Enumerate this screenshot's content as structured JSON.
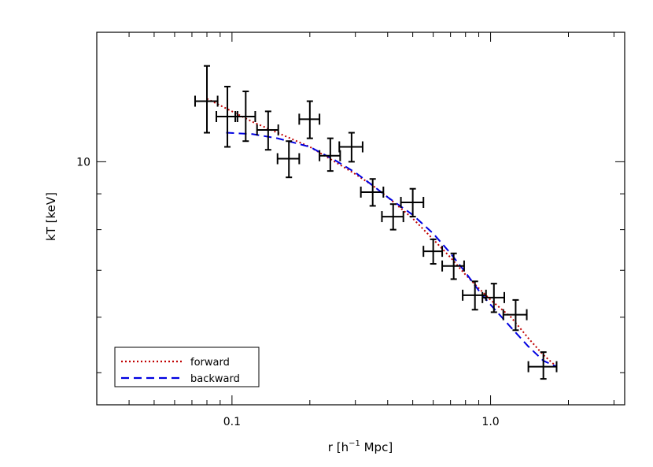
{
  "chart_data": {
    "type": "scatter",
    "xlabel": "r [h",
    "xlabel_sup": "−1",
    "xlabel_end": " Mpc]",
    "ylabel": "kT [keV]",
    "x_scale": "log",
    "y_scale": "log",
    "xlim": [
      0.03,
      3.3
    ],
    "ylim": [
      4.5,
      15.3
    ],
    "x_tick_labels": [
      {
        "value": 0.1,
        "label": "0.1"
      },
      {
        "value": 1.0,
        "label": "1.0"
      }
    ],
    "y_tick_labels": [
      {
        "value": 10,
        "label": "10"
      }
    ],
    "grid": false,
    "legend_position": "bottom-left",
    "points": [
      {
        "x": 0.08,
        "y": 12.2,
        "xerr": [
          0.008,
          0.008
        ],
        "yerr": [
          1.2,
          1.5
        ]
      },
      {
        "x": 0.096,
        "y": 11.6,
        "xerr": [
          0.009,
          0.009
        ],
        "yerr": [
          1.1,
          1.2
        ]
      },
      {
        "x": 0.113,
        "y": 11.6,
        "xerr": [
          0.01,
          0.01
        ],
        "yerr": [
          0.9,
          1.0
        ]
      },
      {
        "x": 0.138,
        "y": 11.1,
        "xerr": [
          0.013,
          0.013
        ],
        "yerr": [
          0.7,
          0.7
        ]
      },
      {
        "x": 0.166,
        "y": 10.1,
        "xerr": [
          0.016,
          0.016
        ],
        "yerr": [
          0.6,
          0.6
        ]
      },
      {
        "x": 0.2,
        "y": 11.5,
        "xerr": [
          0.018,
          0.018
        ],
        "yerr": [
          0.7,
          0.7
        ]
      },
      {
        "x": 0.24,
        "y": 10.2,
        "xerr": [
          0.022,
          0.022
        ],
        "yerr": [
          0.5,
          0.6
        ]
      },
      {
        "x": 0.29,
        "y": 10.5,
        "xerr": [
          0.03,
          0.03
        ],
        "yerr": [
          0.5,
          0.5
        ]
      },
      {
        "x": 0.35,
        "y": 9.05,
        "xerr": [
          0.035,
          0.035
        ],
        "yerr": [
          0.4,
          0.4
        ]
      },
      {
        "x": 0.42,
        "y": 8.35,
        "xerr": [
          0.04,
          0.04
        ],
        "yerr": [
          0.35,
          0.35
        ]
      },
      {
        "x": 0.5,
        "y": 8.75,
        "xerr": [
          0.05,
          0.05
        ],
        "yerr": [
          0.4,
          0.4
        ]
      },
      {
        "x": 0.6,
        "y": 7.45,
        "xerr": [
          0.05,
          0.05
        ],
        "yerr": [
          0.3,
          0.3
        ]
      },
      {
        "x": 0.72,
        "y": 7.1,
        "xerr": [
          0.07,
          0.07
        ],
        "yerr": [
          0.3,
          0.3
        ]
      },
      {
        "x": 0.87,
        "y": 6.45,
        "xerr": [
          0.09,
          0.09
        ],
        "yerr": [
          0.3,
          0.3
        ]
      },
      {
        "x": 1.03,
        "y": 6.4,
        "xerr": [
          0.1,
          0.1
        ],
        "yerr": [
          0.3,
          0.3
        ]
      },
      {
        "x": 1.25,
        "y": 6.05,
        "xerr": [
          0.13,
          0.13
        ],
        "yerr": [
          0.3,
          0.3
        ]
      },
      {
        "x": 1.6,
        "y": 5.1,
        "xerr": [
          0.2,
          0.2
        ],
        "yerr": [
          0.2,
          0.25
        ]
      }
    ],
    "series": [
      {
        "name": "forward",
        "color": "#c00000",
        "dash": "dotted",
        "x": [
          0.08,
          0.1,
          0.12,
          0.15,
          0.2,
          0.25,
          0.3,
          0.35,
          0.4,
          0.5,
          0.6,
          0.7,
          0.8,
          0.9,
          1.0,
          1.2,
          1.4,
          1.6,
          1.8
        ],
        "y": [
          12.3,
          11.8,
          11.4,
          11.0,
          10.5,
          10.0,
          9.6,
          9.25,
          8.9,
          8.3,
          7.75,
          7.3,
          6.9,
          6.6,
          6.35,
          6.0,
          5.6,
          5.3,
          5.1
        ]
      },
      {
        "name": "backward",
        "color": "#0000e0",
        "dash": "dashed",
        "x": [
          0.095,
          0.12,
          0.15,
          0.2,
          0.25,
          0.3,
          0.35,
          0.4,
          0.5,
          0.6,
          0.7,
          0.8,
          0.9,
          1.0,
          1.2,
          1.4,
          1.6,
          1.8
        ],
        "y": [
          11.0,
          10.95,
          10.8,
          10.5,
          10.05,
          9.65,
          9.25,
          8.9,
          8.4,
          7.9,
          7.4,
          6.95,
          6.55,
          6.25,
          5.8,
          5.45,
          5.2,
          5.1
        ]
      }
    ]
  }
}
